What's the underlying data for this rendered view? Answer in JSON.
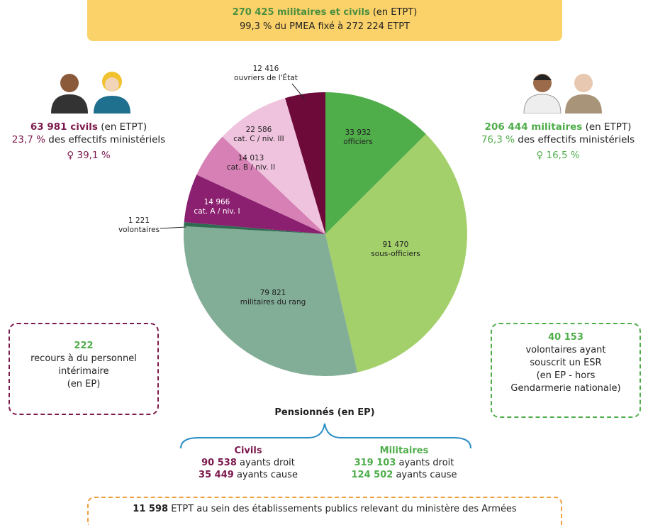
{
  "header": {
    "bold": "270 425 militaires et civils",
    "rest": "(en ETPT)",
    "line2": "99,3 % du PMEA fixé à 272 224 ETPT"
  },
  "civils": {
    "count": "63 981 civils",
    "unit": "(en ETPT)",
    "share": "23,7 %",
    "share_text": "des effectifs ministériels",
    "women": "39,1 %"
  },
  "militaires": {
    "count": "206 444 militaires",
    "unit": "(en ETPT)",
    "share": "76,3 %",
    "share_text": "des effectifs ministériels",
    "women": "16,5 %"
  },
  "interim": {
    "count": "222",
    "lines": [
      "recours à du personnel",
      "intérimaire",
      "(en EP)"
    ]
  },
  "esr": {
    "count": "40 153",
    "lines": [
      "volontaires ayant",
      "souscrit un ESR",
      "(en EP - hors",
      "Gendarmerie nationale)"
    ]
  },
  "pensions": {
    "title": "Pensionnés (en EP)",
    "civils": {
      "title": "Civils",
      "rows": [
        {
          "count": "90 538",
          "label": "ayants droit"
        },
        {
          "count": "35 449",
          "label": "ayants cause"
        }
      ]
    },
    "militaires": {
      "title": "Militaires",
      "rows": [
        {
          "count": "319 103",
          "label": "ayants droit"
        },
        {
          "count": "124 502",
          "label": "ayants cause"
        }
      ]
    }
  },
  "footer": {
    "count": "11 598",
    "text": "ETPT au sein des établissements publics relevant du ministère des Armées"
  },
  "chart_data": {
    "type": "pie",
    "categories": [
      "officiers",
      "sous-officiers",
      "militaires du rang",
      "volontaires",
      "cat. A / niv. I",
      "cat. B / niv. II",
      "cat. C / niv. III",
      "ouvriers de l'État"
    ],
    "values": [
      33932,
      91470,
      79821,
      1221,
      14966,
      14013,
      22586,
      12416
    ],
    "value_labels": [
      "33 932",
      "91 470",
      "79 821",
      "1 221",
      "14 966",
      "14 013",
      "22 586",
      "12 416"
    ],
    "colors": [
      "#4fad4a",
      "#a3d06b",
      "#82ad97",
      "#2f6b50",
      "#8b2070",
      "#d680b5",
      "#efc3dd",
      "#6e0a3a"
    ]
  }
}
